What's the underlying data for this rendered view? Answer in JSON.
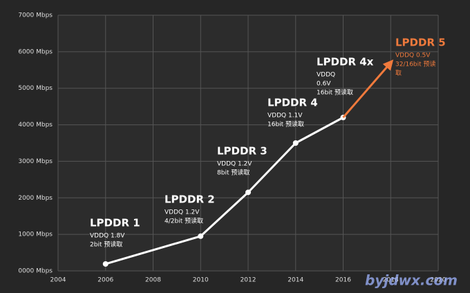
{
  "chart_data": {
    "type": "line",
    "xlim": [
      2004,
      2020
    ],
    "xticks": [
      2004,
      2006,
      2008,
      2010,
      2012,
      2014,
      2016,
      2018,
      2020
    ],
    "ylim": [
      0,
      7000
    ],
    "yticks": [
      {
        "value": 0,
        "label": "0000 Mbps"
      },
      {
        "value": 1000,
        "label": "1000 Mbps"
      },
      {
        "value": 2000,
        "label": "2000 Mbps"
      },
      {
        "value": 3000,
        "label": "3000 Mbps"
      },
      {
        "value": 4000,
        "label": "4000 Mbps"
      },
      {
        "value": 5000,
        "label": "5000 Mbps"
      },
      {
        "value": 6000,
        "label": "6000 Mbps"
      },
      {
        "value": 7000,
        "label": "7000 Mbps"
      }
    ],
    "grid": true,
    "series": [
      {
        "color": "#ffffff",
        "x": [
          2006,
          2010,
          2012,
          2014,
          2016
        ],
        "values": [
          190,
          950,
          2150,
          3500,
          4200
        ]
      },
      {
        "color": "#f07a3c",
        "x": [
          2016,
          2018
        ],
        "values": [
          4200,
          5700
        ],
        "arrow": true
      }
    ],
    "annotations": [
      {
        "title": "LPDDR 1",
        "lines": [
          "VDDQ 1.8V",
          "2bit 预读取"
        ],
        "color": "#ffffff"
      },
      {
        "title": "LPDDR 2",
        "lines": [
          "VDDQ 1.2V",
          "4/2bit 预读取"
        ],
        "color": "#ffffff"
      },
      {
        "title": "LPDDR 3",
        "lines": [
          "VDDQ 1.2V",
          "8bit 预读取"
        ],
        "color": "#ffffff"
      },
      {
        "title": "LPDDR 4",
        "lines": [
          "VDDQ 1.1V",
          "16bit 预读取"
        ],
        "color": "#ffffff"
      },
      {
        "title": "LPDDR 4x",
        "lines": [
          "VDDQ",
          "0.6V",
          "16bit 预读取"
        ],
        "color": "#ffffff"
      },
      {
        "title": "LPDDR 5",
        "lines": [
          "VDDQ 0.5V",
          "32/16bit 预读",
          "取"
        ],
        "color": "#f07a3c"
      }
    ],
    "watermark": "byjdwx.com"
  }
}
